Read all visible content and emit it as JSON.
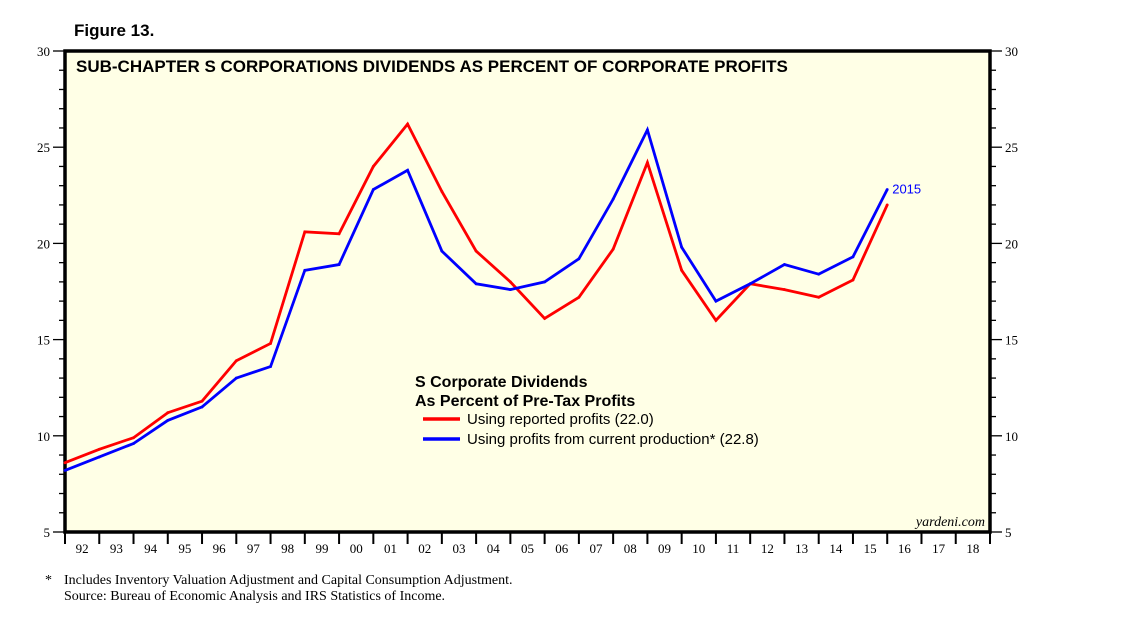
{
  "figure_label": "Figure 13.",
  "footnotes": {
    "star": "*",
    "line1": "Includes Inventory Valuation Adjustment and Capital Consumption Adjustment.",
    "line2": "Source: Bureau of Economic Analysis and IRS Statistics of Income."
  },
  "watermark": "yardeni.com",
  "end_label": "2015",
  "colors": {
    "red": "#ff0000",
    "blue": "#0000ff",
    "plot_bg": "#ffffe6",
    "frame": "#000000"
  },
  "chart_data": {
    "type": "line",
    "title": "SUB-CHAPTER S CORPORATIONS DIVIDENDS AS PERCENT OF CORPORATE PROFITS",
    "xlabel": "",
    "ylabel": "",
    "ylim": [
      5,
      30
    ],
    "yticks": [
      5,
      10,
      15,
      20,
      25,
      30
    ],
    "xlim": [
      1991,
      2018
    ],
    "xtick_labels": [
      "92",
      "93",
      "94",
      "95",
      "96",
      "97",
      "98",
      "99",
      "00",
      "01",
      "02",
      "03",
      "04",
      "05",
      "06",
      "07",
      "08",
      "09",
      "10",
      "11",
      "12",
      "13",
      "14",
      "15",
      "16",
      "17",
      "18"
    ],
    "grid": false,
    "legend": {
      "title_line1": "S Corporate Dividends",
      "title_line2": "As Percent of Pre-Tax Profits",
      "placement": "center"
    },
    "x": [
      1991,
      1992,
      1993,
      1994,
      1995,
      1996,
      1997,
      1998,
      1999,
      2000,
      2001,
      2002,
      2003,
      2004,
      2005,
      2006,
      2007,
      2008,
      2009,
      2010,
      2011,
      2012,
      2013,
      2014,
      2015
    ],
    "series": [
      {
        "name": "Using reported profits (22.0)",
        "color": "#ff0000",
        "values": [
          8.6,
          9.3,
          9.9,
          11.2,
          11.8,
          13.9,
          14.8,
          20.6,
          20.5,
          24.0,
          26.2,
          22.7,
          19.6,
          18.0,
          16.1,
          17.2,
          19.7,
          24.2,
          18.6,
          16.0,
          17.9,
          17.6,
          17.2,
          18.1,
          22.0
        ]
      },
      {
        "name": "Using profits from current production* (22.8)",
        "color": "#0000ff",
        "values": [
          8.2,
          8.9,
          9.6,
          10.8,
          11.5,
          13.0,
          13.6,
          18.6,
          18.9,
          22.8,
          23.8,
          19.6,
          17.9,
          17.6,
          18.0,
          19.2,
          22.3,
          25.9,
          19.8,
          17.0,
          17.9,
          18.9,
          18.4,
          19.3,
          22.8
        ]
      }
    ]
  }
}
